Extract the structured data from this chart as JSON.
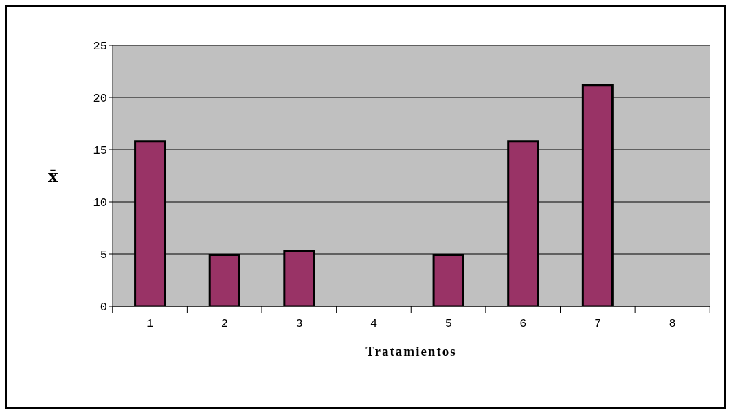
{
  "chart_data": {
    "type": "bar",
    "xlabel": "Tratamientos",
    "ylabel": "x̄",
    "categories": [
      "1",
      "2",
      "3",
      "4",
      "5",
      "6",
      "7",
      "8"
    ],
    "values": [
      15.8,
      4.9,
      5.3,
      0,
      4.9,
      15.8,
      21.2,
      0
    ],
    "color": "#993366",
    "ylim": [
      0,
      25
    ],
    "yticks": [
      0,
      5,
      10,
      15,
      20,
      25
    ],
    "grid": "y"
  }
}
